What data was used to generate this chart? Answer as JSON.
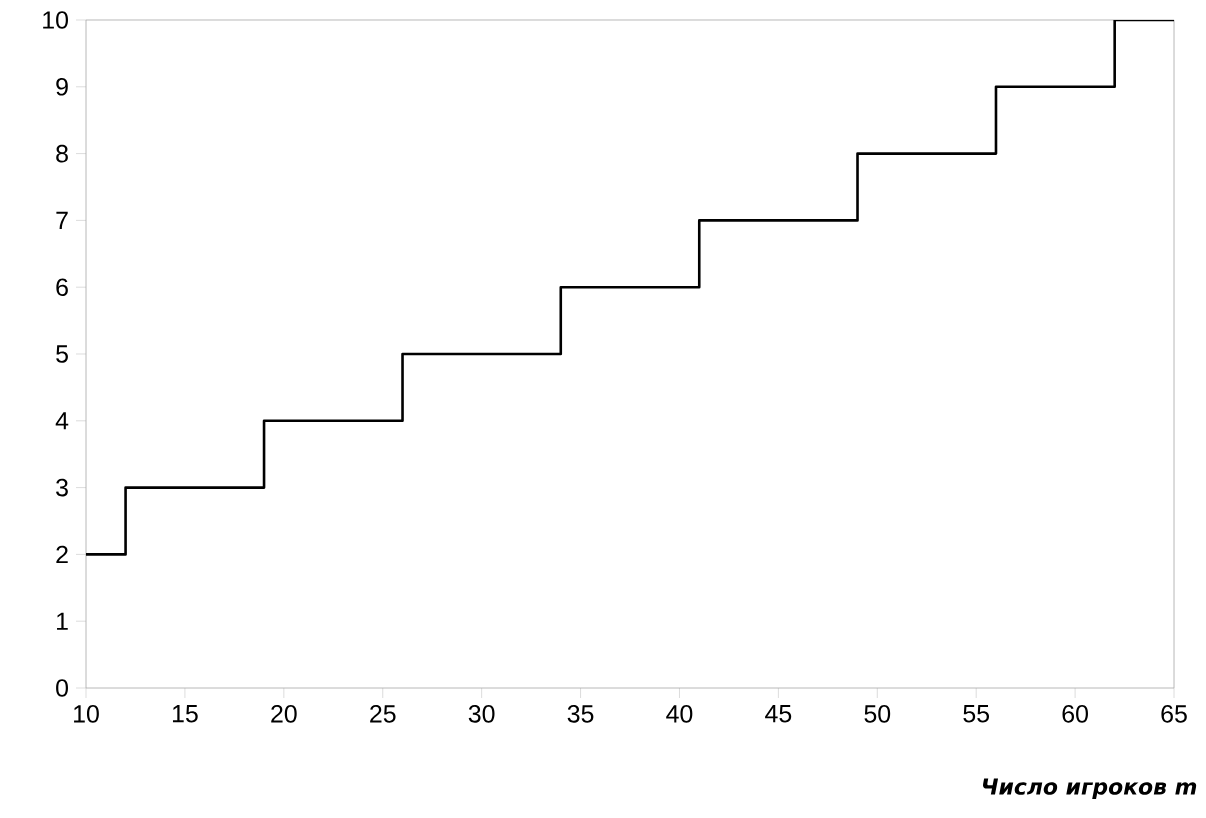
{
  "chart_data": {
    "type": "step",
    "xlabel": "Число игроков m",
    "x": [
      10,
      12,
      19,
      26,
      34,
      41,
      49,
      56,
      62,
      65
    ],
    "values": [
      2,
      3,
      4,
      5,
      6,
      7,
      8,
      9,
      10,
      10
    ],
    "color": "#000000",
    "xlim": [
      10,
      65
    ],
    "ylim": [
      0,
      10
    ],
    "xticks": [
      10,
      15,
      20,
      25,
      30,
      35,
      40,
      45,
      50,
      55,
      60,
      65
    ],
    "yticks": [
      0,
      1,
      2,
      3,
      4,
      5,
      6,
      7,
      8,
      9,
      10
    ],
    "grid": false
  }
}
